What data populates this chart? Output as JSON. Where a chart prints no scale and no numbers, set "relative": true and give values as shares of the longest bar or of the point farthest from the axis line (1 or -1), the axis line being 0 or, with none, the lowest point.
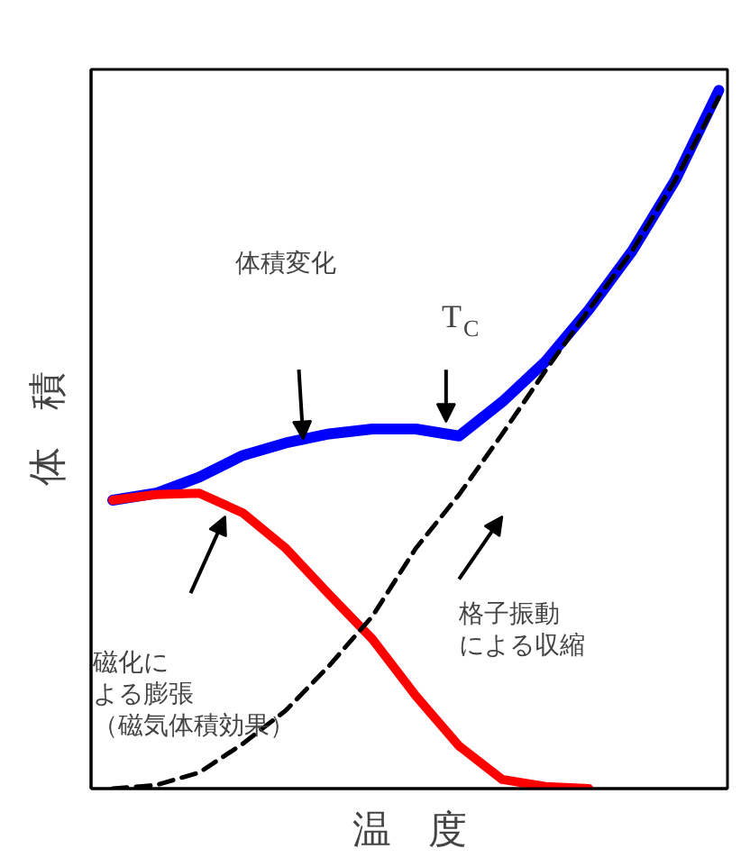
{
  "chart_data": {
    "type": "line",
    "relative": true,
    "xlabel": "温　度",
    "ylabel": "体　積",
    "grid": false,
    "marker": "none",
    "categories": [
      null,
      null,
      null,
      null,
      null,
      null,
      null,
      null,
      null,
      null,
      null,
      null,
      null,
      null,
      null
    ],
    "series": [
      {
        "color": "#0000ff",
        "line_style": "solid",
        "values": [
          0.413,
          0.423,
          0.446,
          0.477,
          0.495,
          0.508,
          0.515,
          0.515,
          0.505,
          0.554,
          0.612,
          0.686,
          0.77,
          0.872,
          1.0
        ]
      },
      {
        "color": "#ff0000",
        "line_style": "solid",
        "values": [
          0.413,
          0.421,
          0.423,
          0.395,
          0.344,
          0.278,
          0.214,
          0.133,
          0.061,
          0.013,
          0.003,
          0.0,
          null,
          null,
          null
        ]
      },
      {
        "color": "#000000",
        "line_style": "dashed",
        "values": [
          0.0,
          0.005,
          0.023,
          0.064,
          0.112,
          0.176,
          0.247,
          0.344,
          0.421,
          0.508,
          0.599,
          0.686,
          0.77,
          0.872,
          0.99
        ]
      }
    ],
    "annotations": [
      "体積変化",
      "T$_{C}$",
      "磁化による膨張（磁気体積効果）",
      "格子振動による収縮"
    ]
  }
}
